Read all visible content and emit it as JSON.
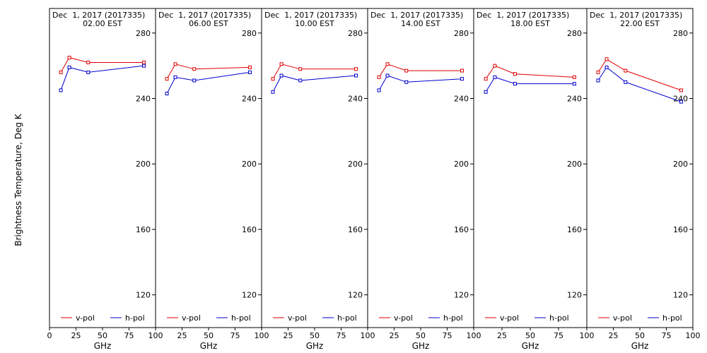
{
  "chart_data": {
    "type": "line",
    "ylabel": "Brightness Temperature, Deg K",
    "xlabel": "GHz",
    "xlim": [
      0,
      100
    ],
    "ylim": [
      100,
      295
    ],
    "yticks": [
      120,
      160,
      200,
      240,
      280
    ],
    "xticks_first_panel": [
      "0",
      "25",
      "50",
      "75",
      "100"
    ],
    "xticks_other_panels": [
      "25",
      "50",
      "75",
      "100"
    ],
    "legend_placement": "bottom",
    "series_styles": [
      {
        "name": "v-pol",
        "color": "#e00000"
      },
      {
        "name": "h-pol",
        "color": "#0000d0"
      }
    ],
    "panels": [
      {
        "title_line1": "Dec  1, 2017 (2017335)",
        "title_line2": "02.00 EST",
        "series": [
          {
            "name": "v-pol",
            "x": [
              10.7,
              18.7,
              36.5,
              89.0
            ],
            "y": [
              256,
              265,
              262,
              262
            ]
          },
          {
            "name": "h-pol",
            "x": [
              10.7,
              18.7,
              36.5,
              89.0
            ],
            "y": [
              245,
              259,
              256,
              260
            ]
          }
        ]
      },
      {
        "title_line1": "Dec  1, 2017 (2017335)",
        "title_line2": "06.00 EST",
        "series": [
          {
            "name": "v-pol",
            "x": [
              10.7,
              18.7,
              36.5,
              89.0
            ],
            "y": [
              252,
              261,
              258,
              259
            ]
          },
          {
            "name": "h-pol",
            "x": [
              10.7,
              18.7,
              36.5,
              89.0
            ],
            "y": [
              243,
              253,
              251,
              256
            ]
          }
        ]
      },
      {
        "title_line1": "Dec  1, 2017 (2017335)",
        "title_line2": "10.00 EST",
        "series": [
          {
            "name": "v-pol",
            "x": [
              10.7,
              18.7,
              36.5,
              89.0
            ],
            "y": [
              252,
              261,
              258,
              258
            ]
          },
          {
            "name": "h-pol",
            "x": [
              10.7,
              18.7,
              36.5,
              89.0
            ],
            "y": [
              244,
              254,
              251,
              254
            ]
          }
        ]
      },
      {
        "title_line1": "Dec  1, 2017 (2017335)",
        "title_line2": "14.00 EST",
        "series": [
          {
            "name": "v-pol",
            "x": [
              10.7,
              18.7,
              36.5,
              89.0
            ],
            "y": [
              253,
              261,
              257,
              257
            ]
          },
          {
            "name": "h-pol",
            "x": [
              10.7,
              18.7,
              36.5,
              89.0
            ],
            "y": [
              245,
              254,
              250,
              252
            ]
          }
        ]
      },
      {
        "title_line1": "Dec  1, 2017 (2017335)",
        "title_line2": "18.00 EST",
        "series": [
          {
            "name": "v-pol",
            "x": [
              10.7,
              18.7,
              36.5,
              89.0
            ],
            "y": [
              252,
              260,
              255,
              253
            ]
          },
          {
            "name": "h-pol",
            "x": [
              10.7,
              18.7,
              36.5,
              89.0
            ],
            "y": [
              244,
              253,
              249,
              249
            ]
          }
        ]
      },
      {
        "title_line1": "Dec  1, 2017 (2017335)",
        "title_line2": "22.00 EST",
        "series": [
          {
            "name": "v-pol",
            "x": [
              10.7,
              18.7,
              36.5,
              89.0
            ],
            "y": [
              256,
              264,
              257,
              245
            ]
          },
          {
            "name": "h-pol",
            "x": [
              10.7,
              18.7,
              36.5,
              89.0
            ],
            "y": [
              251,
              259,
              250,
              238
            ]
          }
        ]
      }
    ]
  }
}
